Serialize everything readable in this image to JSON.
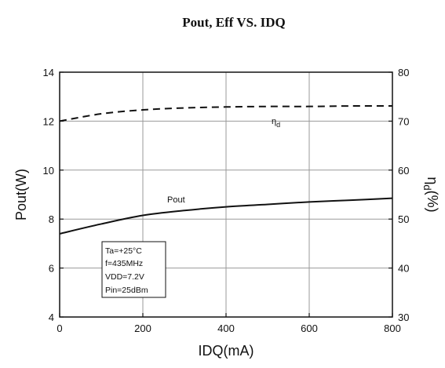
{
  "chart_data": {
    "type": "line",
    "title": "Pout, Eff VS. IDQ",
    "xlabel": "IDQ(mA)",
    "ylabel_left": "Pout(W)",
    "ylabel_right_symbol": "η",
    "ylabel_right_sub": "d",
    "ylabel_right_unit": "(%)",
    "xlim": [
      0,
      800
    ],
    "ylim_left": [
      4,
      14
    ],
    "ylim_right": [
      30,
      80
    ],
    "x_ticks": [
      "0",
      "200",
      "400",
      "600",
      "800"
    ],
    "y_left_ticks": [
      "4",
      "6",
      "8",
      "10",
      "12",
      "14"
    ],
    "y_right_ticks": [
      "30",
      "40",
      "50",
      "60",
      "70",
      "80"
    ],
    "grid": true,
    "series": [
      {
        "name": "Pout",
        "axis": "left",
        "style": "solid",
        "x": [
          0,
          100,
          200,
          300,
          400,
          500,
          600,
          700,
          800
        ],
        "y": [
          7.4,
          7.8,
          8.15,
          8.35,
          8.5,
          8.6,
          8.7,
          8.77,
          8.85
        ]
      },
      {
        "name": "η d",
        "axis": "right",
        "style": "dashed",
        "x": [
          0,
          100,
          200,
          300,
          400,
          500,
          600,
          700,
          800
        ],
        "y": [
          70.0,
          71.5,
          72.3,
          72.7,
          72.9,
          73.0,
          73.0,
          73.1,
          73.1
        ]
      }
    ],
    "annotations": {
      "pout_label": "Pout",
      "eff_label_symbol": "η",
      "eff_label_sub": "d"
    },
    "conditions": [
      "Ta=+25°C",
      "f=435MHz",
      "VDD=7.2V",
      "Pin=25dBm"
    ]
  }
}
